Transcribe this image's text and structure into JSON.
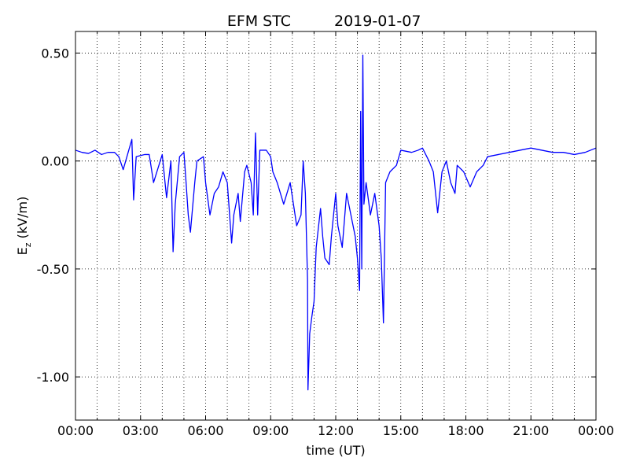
{
  "chart_data": {
    "type": "line",
    "title": {
      "instrument": "EFM STC",
      "date": "2019-01-07"
    },
    "xlabel": "time (UT)",
    "ylabel": {
      "base": "E",
      "sub": "z",
      "rest": " (kV/m)"
    },
    "xlim": [
      0,
      24
    ],
    "xticks": [
      {
        "value": 0,
        "label": "00:00"
      },
      {
        "value": 3,
        "label": "03:00"
      },
      {
        "value": 6,
        "label": "06:00"
      },
      {
        "value": 9,
        "label": "09:00"
      },
      {
        "value": 12,
        "label": "12:00"
      },
      {
        "value": 15,
        "label": "15:00"
      },
      {
        "value": 18,
        "label": "18:00"
      },
      {
        "value": 21,
        "label": "21:00"
      },
      {
        "value": 24,
        "label": "00:00"
      }
    ],
    "x_minor_ticks": [
      1,
      2,
      4,
      5,
      7,
      8,
      10,
      11,
      13,
      14,
      16,
      17,
      19,
      20,
      22,
      23
    ],
    "ylim": [
      -1.2,
      0.6
    ],
    "yticks": [
      {
        "value": 0.5,
        "label": "0.50"
      },
      {
        "value": 0,
        "label": "0.00"
      },
      {
        "value": -0.5,
        "label": "-0.50"
      },
      {
        "value": -1,
        "label": "-1.00"
      }
    ],
    "grid": true,
    "series": [
      {
        "color": "#0000ff",
        "x": [
          0,
          0.3,
          0.6,
          0.9,
          1.2,
          1.5,
          1.8,
          2.0,
          2.2,
          2.4,
          2.6,
          2.68,
          2.8,
          3.2,
          3.4,
          3.6,
          4.0,
          4.2,
          4.4,
          4.5,
          4.6,
          4.8,
          5.0,
          5.1,
          5.2,
          5.3,
          5.5,
          5.6,
          5.9,
          6.0,
          6.2,
          6.4,
          6.6,
          6.8,
          7.0,
          7.2,
          7.3,
          7.5,
          7.6,
          7.8,
          7.9,
          8.1,
          8.2,
          8.3,
          8.4,
          8.5,
          8.8,
          9.0,
          9.1,
          9.3,
          9.6,
          9.9,
          10.2,
          10.4,
          10.5,
          10.6,
          10.7,
          10.72,
          10.8,
          10.9,
          11.0,
          11.1,
          11.3,
          11.4,
          11.5,
          11.7,
          11.8,
          12.0,
          12.1,
          12.3,
          12.5,
          12.7,
          12.9,
          13.0,
          13.1,
          13.15,
          13.2,
          13.25,
          13.3,
          13.4,
          13.6,
          13.8,
          14.0,
          14.1,
          14.2,
          14.3,
          14.5,
          14.8,
          15.0,
          15.5,
          15.8,
          16.0,
          16.3,
          16.5,
          16.7,
          16.9,
          17.1,
          17.3,
          17.5,
          17.6,
          17.9,
          18.2,
          18.5,
          18.8,
          19.0,
          19.5,
          20.0,
          20.5,
          21.0,
          21.5,
          22.0,
          22.5,
          23.0,
          23.5,
          24.0
        ],
        "values": [
          0.05,
          0.04,
          0.035,
          0.05,
          0.03,
          0.04,
          0.04,
          0.02,
          -0.04,
          0.03,
          0.1,
          -0.18,
          0.02,
          0.03,
          0.03,
          -0.1,
          0.03,
          -0.17,
          0.0,
          -0.42,
          -0.2,
          0.02,
          0.04,
          -0.1,
          -0.25,
          -0.33,
          -0.1,
          0.0,
          0.02,
          -0.1,
          -0.25,
          -0.15,
          -0.12,
          -0.05,
          -0.1,
          -0.38,
          -0.25,
          -0.15,
          -0.28,
          -0.05,
          -0.02,
          -0.1,
          -0.25,
          0.13,
          -0.25,
          0.05,
          0.05,
          0.02,
          -0.05,
          -0.1,
          -0.2,
          -0.1,
          -0.3,
          -0.25,
          0.0,
          -0.15,
          -0.55,
          -1.06,
          -0.8,
          -0.72,
          -0.65,
          -0.4,
          -0.22,
          -0.35,
          -0.45,
          -0.48,
          -0.35,
          -0.15,
          -0.3,
          -0.4,
          -0.15,
          -0.25,
          -0.35,
          -0.45,
          -0.6,
          0.23,
          -0.5,
          0.49,
          -0.2,
          -0.1,
          -0.25,
          -0.15,
          -0.3,
          -0.45,
          -0.75,
          -0.1,
          -0.05,
          -0.02,
          0.05,
          0.04,
          0.05,
          0.06,
          0.0,
          -0.05,
          -0.24,
          -0.05,
          0.0,
          -0.1,
          -0.15,
          -0.02,
          -0.05,
          -0.12,
          -0.05,
          -0.02,
          0.02,
          0.03,
          0.04,
          0.05,
          0.06,
          0.05,
          0.04,
          0.04,
          0.03,
          0.04,
          0.06
        ]
      }
    ]
  }
}
